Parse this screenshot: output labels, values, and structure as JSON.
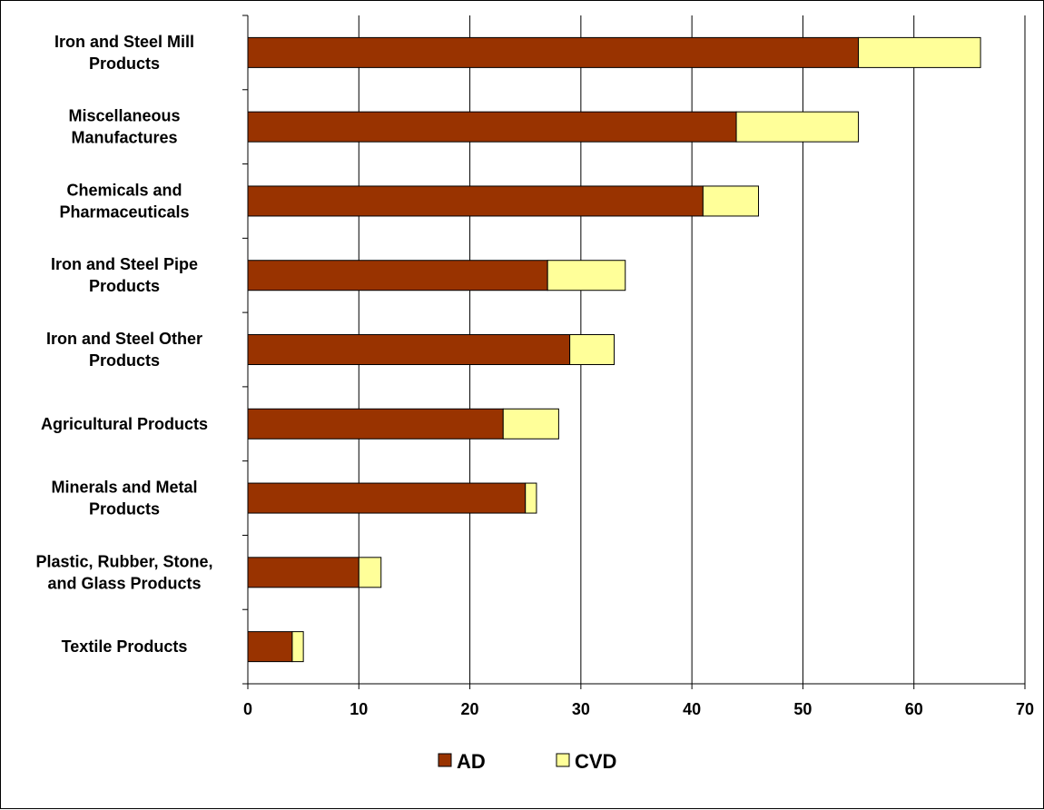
{
  "chart_data": {
    "type": "bar",
    "orientation": "horizontal",
    "stacked": true,
    "title": "",
    "xlabel": "",
    "ylabel": "",
    "categories": [
      [
        "Iron and Steel Mill",
        "Products"
      ],
      [
        "Miscellaneous",
        "Manufactures"
      ],
      [
        "Chemicals and",
        "Pharmaceuticals"
      ],
      [
        "Iron and Steel Pipe",
        "Products"
      ],
      [
        "Iron and Steel Other",
        "Products"
      ],
      [
        "Agricultural Products"
      ],
      [
        "Minerals and Metal",
        "Products"
      ],
      [
        "Plastic, Rubber, Stone,",
        "and Glass Products"
      ],
      [
        "Textile Products"
      ]
    ],
    "series": [
      {
        "name": "AD",
        "color": "#993300",
        "values": [
          55,
          44,
          41,
          27,
          29,
          23,
          25,
          10,
          4
        ]
      },
      {
        "name": "CVD",
        "color": "#FFFF99",
        "values": [
          11,
          11,
          5,
          7,
          4,
          5,
          1,
          2,
          1
        ]
      }
    ],
    "xlim": [
      0,
      70
    ],
    "xticks": [
      0,
      10,
      20,
      30,
      40,
      50,
      60,
      70
    ],
    "grid": "vertical",
    "legend": "bottom-center"
  }
}
